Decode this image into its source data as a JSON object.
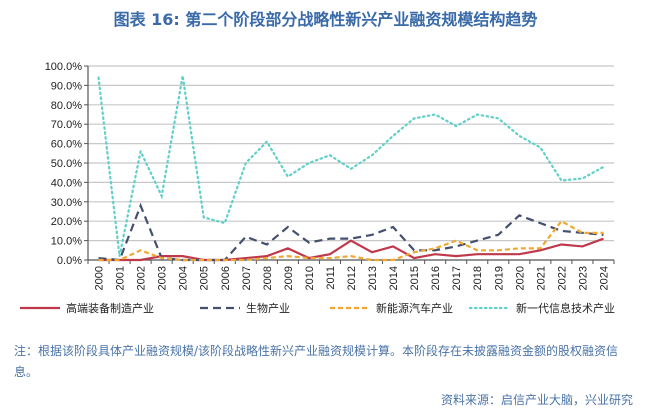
{
  "title": "图表 16: 第二个阶段部分战略性新兴产业融资规模结构趋势",
  "note": "注：根据该阶段具体产业融资规模/该阶段战略性新兴产业融资规模计算。本阶段存在未披露融资金额的股权融资信息。",
  "source": "资料来源：启信产业大脑，兴业研究",
  "chart_data": {
    "type": "line",
    "title": "图表 16: 第二个阶段部分战略性新兴产业融资规模结构趋势",
    "ylim": [
      0,
      100
    ],
    "yticks": [
      "0.0%",
      "10.0%",
      "20.0%",
      "30.0%",
      "40.0%",
      "50.0%",
      "60.0%",
      "70.0%",
      "80.0%",
      "90.0%",
      "100.0%"
    ],
    "grid": true,
    "legend": "bottom",
    "categories": [
      "2000",
      "2001",
      "2002",
      "2003",
      "2004",
      "2005",
      "2006",
      "2007",
      "2008",
      "2009",
      "2010",
      "2011",
      "2012",
      "2013",
      "2014",
      "2015",
      "2016",
      "2017",
      "2018",
      "2019",
      "2020",
      "2021",
      "2022",
      "2023",
      "2024"
    ],
    "series": [
      {
        "name": "高端装备制造产业",
        "color": "#c0394b",
        "style": "solid",
        "values": [
          0,
          0,
          0,
          2,
          2,
          0,
          0,
          1,
          2,
          6,
          1,
          3,
          10,
          4,
          7,
          1,
          3,
          2,
          3,
          3,
          3,
          5,
          8,
          7,
          11
        ]
      },
      {
        "name": "生物产业",
        "color": "#44506e",
        "style": "dash",
        "values": [
          1,
          0,
          28,
          1,
          0,
          0,
          0,
          12,
          8,
          17,
          9,
          11,
          11,
          13,
          17,
          5,
          5,
          7,
          10,
          13,
          23,
          19,
          15,
          14,
          13
        ]
      },
      {
        "name": "新能源汽车产业",
        "color": "#f0a830",
        "style": "shortdash",
        "values": [
          0,
          0,
          5,
          1,
          0,
          0,
          0,
          0,
          1,
          2,
          1,
          1,
          2,
          0,
          0,
          4,
          6,
          10,
          5,
          5,
          6,
          6,
          20,
          14,
          14
        ]
      },
      {
        "name": "新一代信息技术产业",
        "color": "#5fd0c8",
        "style": "dot",
        "values": [
          94,
          2,
          56,
          33,
          95,
          22,
          19,
          50,
          61,
          43,
          50,
          54,
          47,
          54,
          64,
          73,
          75,
          69,
          75,
          73,
          64,
          58,
          41,
          42,
          48
        ]
      }
    ]
  }
}
